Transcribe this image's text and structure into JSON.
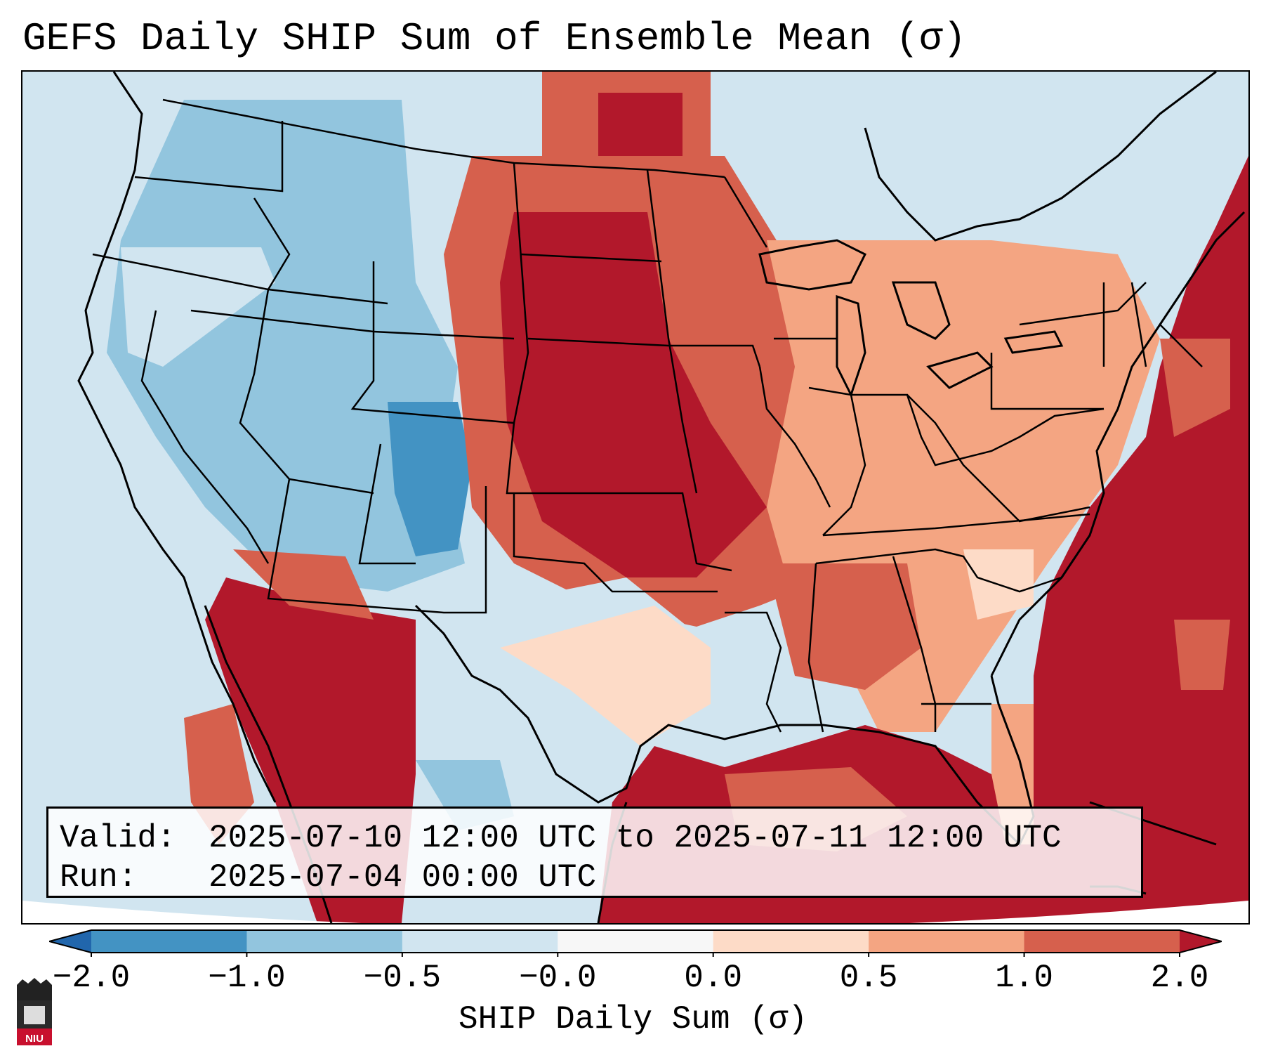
{
  "title": "GEFS Daily SHIP Sum of Ensemble Mean (σ)",
  "info": {
    "valid_label": "Valid:",
    "valid_value": "2025-07-10 12:00 UTC to 2025-07-11 12:00 UTC",
    "run_label": "Run:",
    "run_value": "2025-07-04 00:00 UTC"
  },
  "colorbar": {
    "label": "SHIP Daily Sum (σ)",
    "ticks": [
      "−2.0",
      "−1.0",
      "−0.5",
      "−0.0",
      "0.0",
      "0.5",
      "1.0",
      "2.0"
    ],
    "bins": [
      {
        "range": "-2.0 to -1.0",
        "color": "#4393c3"
      },
      {
        "range": "-1.0 to -0.5",
        "color": "#92c5de"
      },
      {
        "range": "-0.5 to -0.0",
        "color": "#d1e5f0"
      },
      {
        "range": "-0.0 to 0.0",
        "color": "#f7f7f7"
      },
      {
        "range": "0.0 to 0.5",
        "color": "#fddbc7"
      },
      {
        "range": "0.5 to 1.0",
        "color": "#f4a582"
      },
      {
        "range": "1.0 to 2.0",
        "color": "#d6604d"
      }
    ],
    "under_color": "#2166ac",
    "over_color": "#b2182b"
  },
  "logo": {
    "text": "NIU",
    "color": "#c8102e"
  },
  "map": {
    "projection": "Lambert conformal, contiguous United States",
    "regions": [
      {
        "name": "pacific-ocean",
        "value_bin": "-0.5 to -0.0"
      },
      {
        "name": "pacific-northwest",
        "value_bin": "-1.0 to -0.5"
      },
      {
        "name": "great-basin-colorado",
        "value_bin": "-1.0 to -0.5"
      },
      {
        "name": "colorado-core",
        "value_bin": "-2.0 to -1.0"
      },
      {
        "name": "texas",
        "value_bin": "-0.5 to -0.0"
      },
      {
        "name": "central-plains",
        "value_bin": "> 2.0"
      },
      {
        "name": "midwest",
        "value_bin": "1.0 to 2.0"
      },
      {
        "name": "ohio-valley",
        "value_bin": "0.5 to 1.0"
      },
      {
        "name": "southeast",
        "value_bin": "0.5 to 1.0"
      },
      {
        "name": "gulf-of-mexico",
        "value_bin": "> 2.0"
      },
      {
        "name": "atlantic-ocean",
        "value_bin": "> 2.0"
      },
      {
        "name": "mexico-northwest",
        "value_bin": "> 2.0"
      }
    ]
  }
}
